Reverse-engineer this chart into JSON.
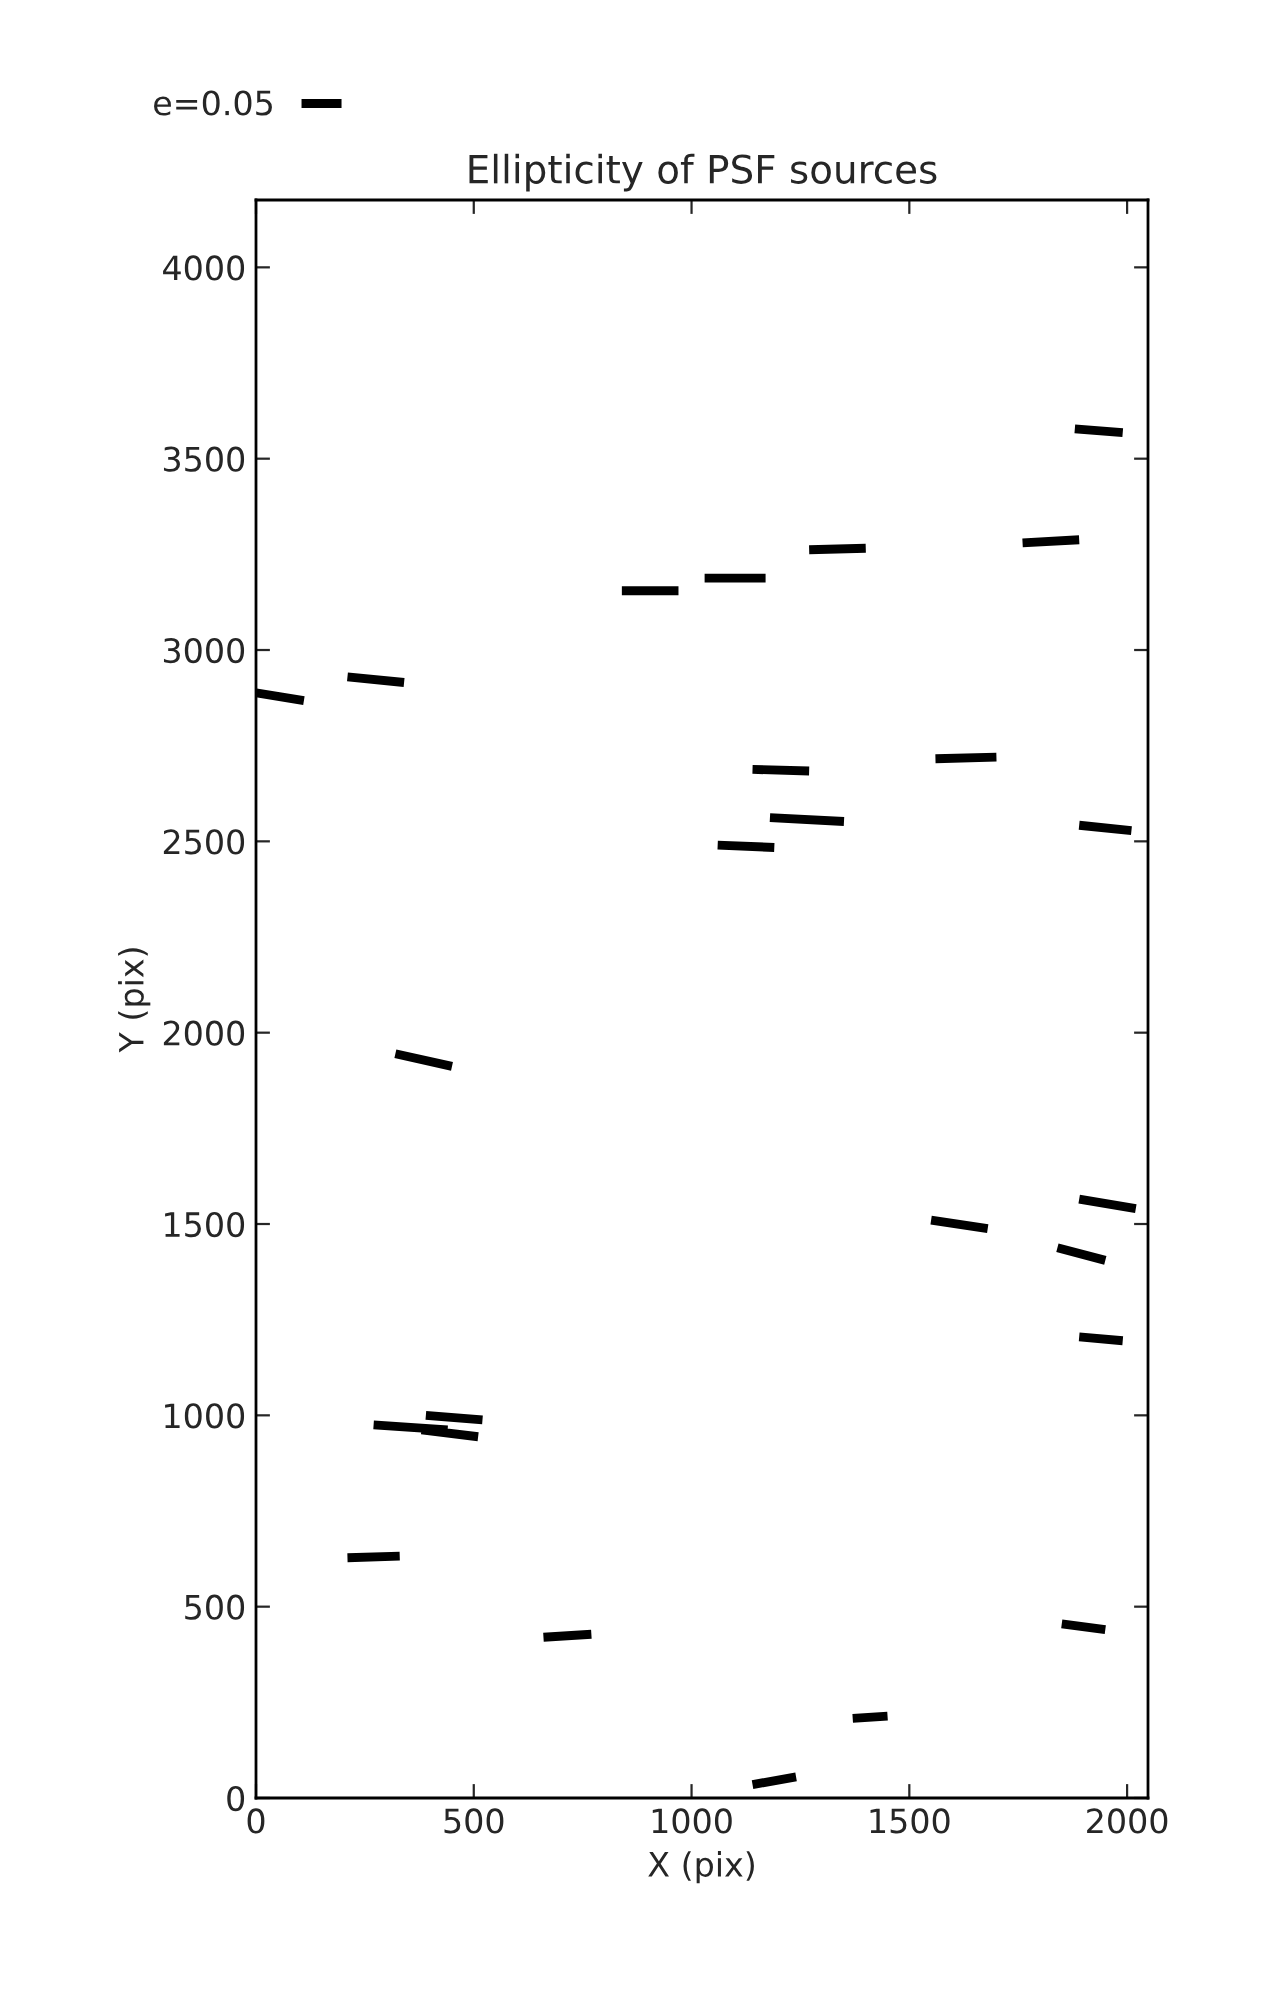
{
  "chart_data": {
    "type": "line",
    "title": "Ellipticity of PSF sources",
    "xlabel": "X (pix)",
    "ylabel": "Y (pix)",
    "xlim": [
      0,
      2048
    ],
    "ylim": [
      0,
      4176
    ],
    "xticks": [
      0,
      500,
      1000,
      1500,
      2000
    ],
    "yticks": [
      0,
      500,
      1000,
      1500,
      2000,
      2500,
      3000,
      3500,
      4000
    ],
    "grid": false,
    "legend": "top left",
    "marker": "none",
    "line_style": "solid",
    "series": [
      {
        "name": "e=0.05",
        "color": "#000000",
        "x": [
          0,
          110,
          null,
          210,
          340,
          null,
          840,
          970,
          null,
          1030,
          1170,
          null,
          1270,
          1400,
          null,
          1760,
          1890,
          null,
          1880,
          1990,
          null,
          1140,
          1270,
          null,
          1560,
          1700,
          null,
          1180,
          1350,
          null,
          1060,
          1190,
          null,
          1890,
          2010,
          null,
          320,
          450,
          null,
          1550,
          1680,
          null,
          1890,
          2020,
          null,
          1840,
          1950,
          null,
          1890,
          1990,
          null,
          270,
          440,
          null,
          380,
          510,
          null,
          390,
          520,
          null,
          210,
          330,
          null,
          660,
          770,
          null,
          1140,
          1240,
          null,
          1370,
          1450,
          null,
          1850,
          1950
        ],
        "values": [
          2888,
          2868,
          null,
          2930,
          2915,
          null,
          3155,
          3155,
          null,
          3188,
          3188,
          null,
          3262,
          3266,
          null,
          3280,
          3288,
          null,
          3578,
          3568,
          null,
          2688,
          2684,
          null,
          2716,
          2720,
          null,
          2562,
          2552,
          null,
          2490,
          2484,
          null,
          2542,
          2528,
          null,
          1945,
          1912,
          null,
          1510,
          1488,
          null,
          1565,
          1540,
          null,
          1438,
          1405,
          null,
          1205,
          1195,
          null,
          975,
          962,
          null,
          962,
          944,
          null,
          1000,
          988,
          null,
          628,
          632,
          null,
          420,
          428,
          null,
          35,
          55,
          null,
          208,
          214,
          null,
          455,
          440
        ]
      }
    ]
  }
}
